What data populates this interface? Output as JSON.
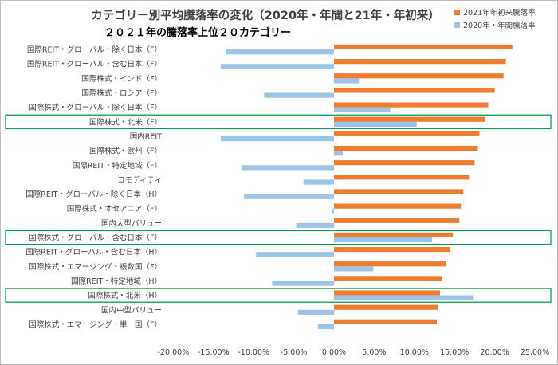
{
  "chart_data": {
    "type": "bar",
    "orientation": "horizontal",
    "title": "カテゴリー別平均騰落率の変化（2020年・年間と21年・年初来）",
    "subtitle": "２０２１年の騰落率上位２０カテゴリー",
    "categories": [
      "国際REIT・グローバル・除く日本（F）",
      "国際REIT・グローバル・含む日本（F）",
      "国際株式・インド（F）",
      "国際株式・ロシア（F）",
      "国際株式・グローバル・除く日本（F）",
      "国際株式・北米（F）",
      "国内REIT",
      "国際株式・欧州（F）",
      "国際REIT・特定地域（F）",
      "コモディティ",
      "国際REIT・グローバル・除く日本（H）",
      "国際株式・オセアニア（F）",
      "国内大型バリュー",
      "国際株式・グローバル・含む日本（F）",
      "国際REIT・グローバル・含む日本（H）",
      "国際株式・エマージング・複数国（F）",
      "国際REIT・特定地域（H）",
      "国際株式・北米（H）",
      "国内中型バリュー",
      "国際株式・エマージング・単一国（F）"
    ],
    "series": [
      {
        "name": "2021年年初来騰落率",
        "color": "#ed7d31",
        "values": [
          22.2,
          21.4,
          21.1,
          20.0,
          19.2,
          18.8,
          18.1,
          17.9,
          17.5,
          16.8,
          16.1,
          15.8,
          15.6,
          14.8,
          14.5,
          13.9,
          13.4,
          13.2,
          12.9,
          12.8
        ]
      },
      {
        "name": "2020年・年間騰落率",
        "color": "#9dc3e6",
        "values": [
          -13.5,
          -14.1,
          3.1,
          -8.7,
          7.0,
          10.3,
          -14.1,
          1.1,
          -11.5,
          -3.8,
          -11.2,
          -0.2,
          -4.7,
          12.2,
          -9.7,
          4.9,
          -7.7,
          17.3,
          -4.5,
          -2.0
        ]
      }
    ],
    "xlim": [
      -20,
      25
    ],
    "xticks": [
      -20,
      -15,
      -10,
      -5,
      0,
      5,
      10,
      15,
      20,
      25
    ],
    "tick_format": "percent_2dp",
    "grid": false,
    "legend": "top-right",
    "highlighted_categories": [
      "国際株式・北米（F）",
      "国際株式・グローバル・含む日本（F）",
      "国際株式・北米（H）"
    ],
    "highlight_color": "#00a04b"
  }
}
